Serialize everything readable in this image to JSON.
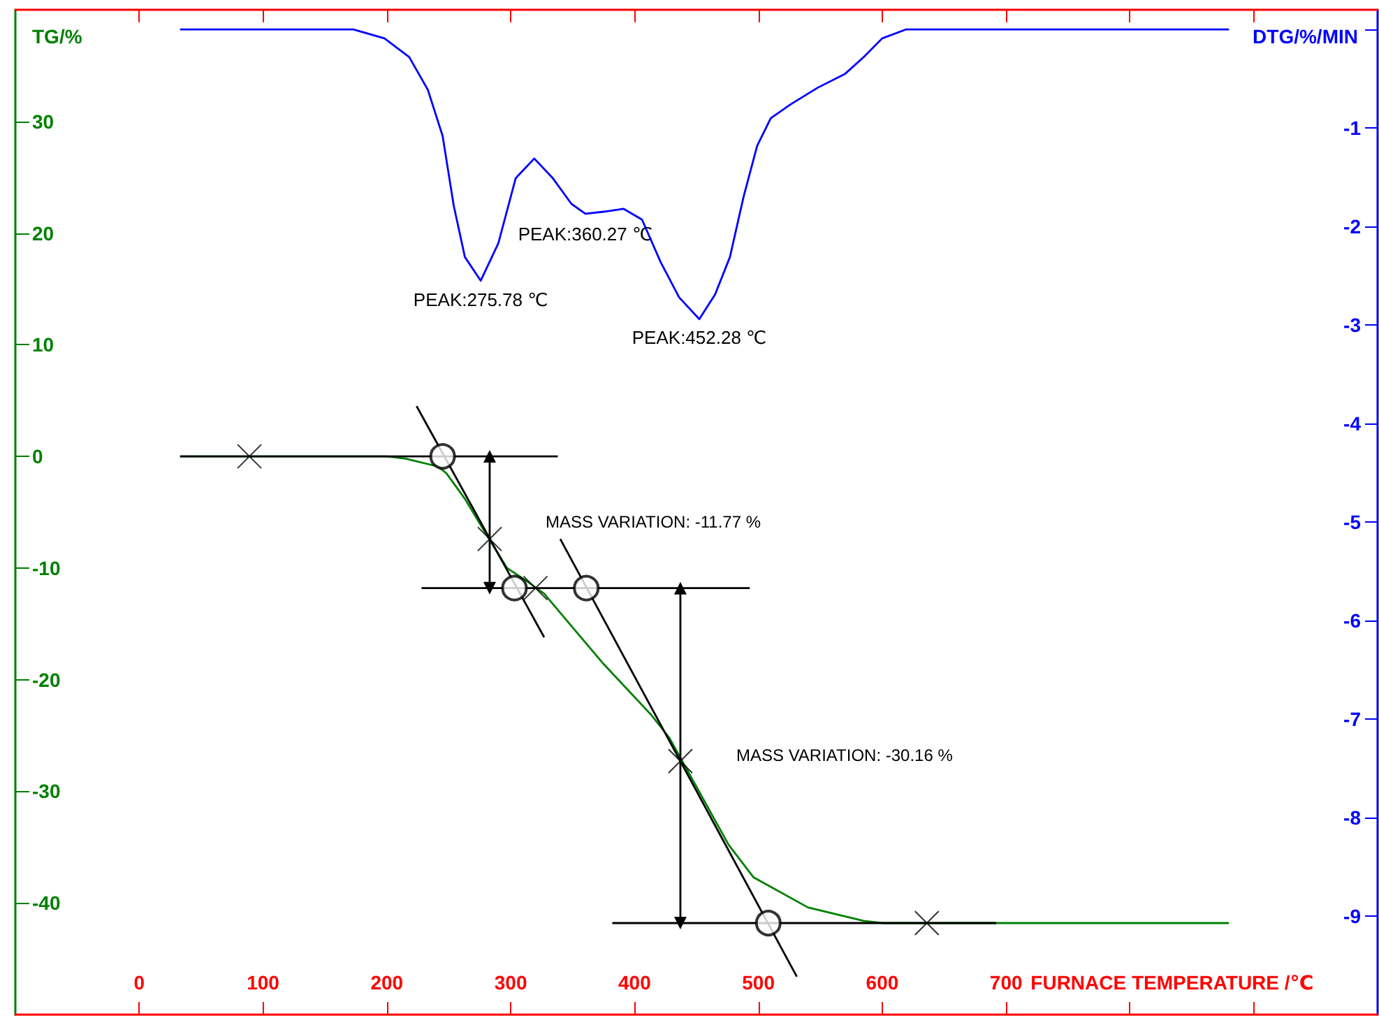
{
  "chart_data": {
    "type": "line",
    "xlabel": "FURNACE TEMPERATURE /℃",
    "ylabel": "TG/%",
    "y2label": "DTG/%/MIN",
    "xlim": [
      -100,
      1000
    ],
    "xticks": [
      0,
      100,
      200,
      300,
      400,
      500,
      600,
      700,
      {
        "value": 800,
        "label": null
      },
      {
        "value": 900,
        "label": null
      }
    ],
    "ylim": [
      -50,
      40
    ],
    "yticks": [
      -40,
      -30,
      -20,
      -10,
      0,
      10,
      20,
      30
    ],
    "y2lim": [
      -10,
      0.2
    ],
    "y2ticks": [
      -9,
      -8,
      -7,
      -6,
      -5,
      -4,
      -3,
      -2,
      -1,
      {
        "value": 0,
        "label": null
      }
    ],
    "grid": false,
    "marker": "none",
    "series": [
      {
        "color": "#008000",
        "x": [
          33,
          200,
          215,
          241,
          248,
          263,
          282,
          297,
          312,
          327,
          349,
          375,
          413,
          428,
          437,
          476,
          496,
          540,
          585,
          600,
          880
        ],
        "values": [
          0,
          0,
          -0.2,
          -0.9,
          -1.5,
          -3.8,
          -7.3,
          -10,
          -11.1,
          -12.3,
          -15.2,
          -18.6,
          -23.1,
          -25.2,
          -27,
          -34.8,
          -37.7,
          -40.4,
          -41.6,
          -41.8,
          -41.8
        ]
      },
      {
        "color": "#0000ff",
        "axis": "y2",
        "x": [
          33,
          173,
          198,
          218,
          233,
          245,
          254,
          263,
          275.78,
          290,
          304,
          319,
          334,
          349,
          360.27,
          375,
          391,
          406,
          421,
          436,
          452.28,
          465,
          477,
          488,
          499,
          510,
          526,
          548,
          570,
          585,
          600,
          619,
          880
        ],
        "values": [
          0,
          0,
          -0.09,
          -0.28,
          -0.61,
          -1.08,
          -1.79,
          -2.31,
          -2.55,
          -2.17,
          -1.51,
          -1.31,
          -1.51,
          -1.77,
          -1.87,
          -1.85,
          -1.82,
          -1.93,
          -2.36,
          -2.72,
          -2.94,
          -2.69,
          -2.31,
          -1.7,
          -1.18,
          -0.9,
          -0.76,
          -0.59,
          -0.45,
          -0.28,
          -0.09,
          0,
          0
        ]
      },
      {
        "color": "#000000",
        "x": [
          33,
          338
        ],
        "values": [
          0,
          0
        ]
      },
      {
        "color": "#000000",
        "x": [
          224,
          327
        ],
        "values": [
          4.5,
          -16.2
        ]
      },
      {
        "color": "#000000",
        "x": [
          228,
          493
        ],
        "values": [
          -11.8,
          -11.8
        ]
      },
      {
        "color": "#000000",
        "x": [
          340,
          531
        ],
        "values": [
          -7.4,
          -46.6
        ]
      },
      {
        "color": "#000000",
        "x": [
          382,
          692
        ],
        "values": [
          -41.8,
          -41.8
        ]
      },
      {
        "color": "#000000",
        "marker": "triangle",
        "x": [
          283,
          283
        ],
        "values": [
          0,
          -11.8
        ]
      },
      {
        "color": "#000000",
        "marker": "triangle",
        "x": [
          437,
          437
        ],
        "values": [
          -11.8,
          -41.8
        ]
      },
      {
        "type": "scatter",
        "color": "#000000",
        "marker": "cross",
        "x": [
          89,
          283,
          320,
          437,
          636
        ],
        "values": [
          0,
          -7.4,
          -11.8,
          -27.3,
          -41.8
        ]
      },
      {
        "type": "scatter",
        "color": "#000000",
        "marker": "circle",
        "x": [
          245,
          303,
          361,
          508
        ],
        "values": [
          0,
          -11.8,
          -11.8,
          -41.8
        ]
      }
    ],
    "annotations": [
      {
        "text": "PEAK:275.78 ℃",
        "x": 275.78,
        "y": 15.6
      },
      {
        "text": "PEAK:360.27 ℃",
        "x": 360.27,
        "y": 21.5
      },
      {
        "text": "PEAK:452.28 ℃",
        "x": 452.28,
        "y": 12.2
      },
      "MASS VARIATION: -11.77 %",
      "MASS VARIATION: -30.16 %"
    ]
  }
}
